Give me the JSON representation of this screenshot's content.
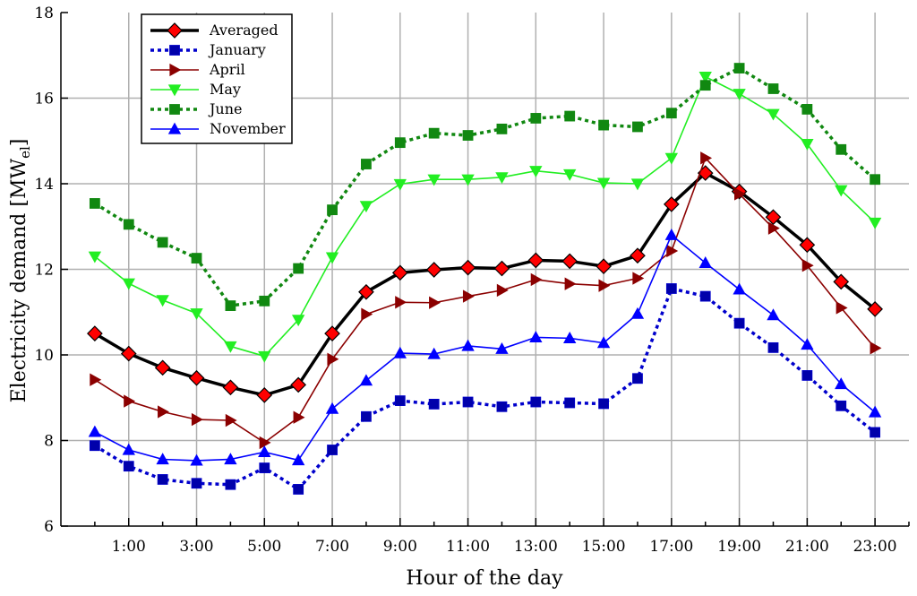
{
  "chart_data": {
    "type": "line",
    "xlabel": "Hour of the day",
    "ylabel_main": "Electricity demand [MW",
    "ylabel_sub": "el",
    "ylabel_close": "]",
    "xlim": [
      -1,
      24
    ],
    "ylim": [
      6,
      18
    ],
    "y_ticks": [
      6,
      8,
      10,
      12,
      14,
      16,
      18
    ],
    "x_ticks": [
      1,
      3,
      5,
      7,
      9,
      11,
      13,
      15,
      17,
      19,
      21,
      23
    ],
    "x_tick_labels": [
      "1:00",
      "3:00",
      "5:00",
      "7:00",
      "9:00",
      "11:00",
      "13:00",
      "15:00",
      "17:00",
      "19:00",
      "21:00",
      "23:00"
    ],
    "x_minor_ticks": [
      0,
      2,
      4,
      6,
      8,
      10,
      12,
      14,
      16,
      18,
      20,
      22,
      24
    ],
    "grid": true,
    "legend_position": "top-left",
    "x": [
      0,
      1,
      2,
      3,
      4,
      5,
      6,
      7,
      8,
      9,
      10,
      11,
      12,
      13,
      14,
      15,
      16,
      17,
      18,
      19,
      20,
      21,
      22,
      23
    ],
    "series": [
      {
        "name": "Averaged",
        "color": "#000000",
        "marker": "diamond",
        "marker_fill": "#ff0000",
        "dash": "solid",
        "width": 3.5,
        "values": [
          10.5,
          10.03,
          9.7,
          9.46,
          9.24,
          9.06,
          9.3,
          10.5,
          11.47,
          11.92,
          11.99,
          12.04,
          12.02,
          12.21,
          12.19,
          12.07,
          12.32,
          13.52,
          14.25,
          13.82,
          13.22,
          12.57,
          11.71,
          11.07
        ]
      },
      {
        "name": "January",
        "color": "#0000cc",
        "marker": "square",
        "marker_fill": "#0000aa",
        "dash": "dotted",
        "width": 3.5,
        "values": [
          7.88,
          7.4,
          7.09,
          7.0,
          6.97,
          7.36,
          6.86,
          7.78,
          8.56,
          8.93,
          8.85,
          8.9,
          8.79,
          8.9,
          8.88,
          8.86,
          9.45,
          11.55,
          11.37,
          10.74,
          10.17,
          9.52,
          8.81,
          8.19
        ]
      },
      {
        "name": "April",
        "color": "#8b0000",
        "marker": "triangle-right",
        "marker_fill": "#8b0000",
        "dash": "solid",
        "width": 1.6,
        "values": [
          9.42,
          8.92,
          8.67,
          8.49,
          8.47,
          7.95,
          8.54,
          9.9,
          10.95,
          11.23,
          11.22,
          11.37,
          11.51,
          11.76,
          11.66,
          11.62,
          11.79,
          12.43,
          14.6,
          13.76,
          12.96,
          12.09,
          11.1,
          10.16
        ]
      },
      {
        "name": "May",
        "color": "#22ee22",
        "marker": "triangle-down",
        "marker_fill": "#22ee22",
        "dash": "solid",
        "width": 1.6,
        "values": [
          12.3,
          11.67,
          11.28,
          10.97,
          10.2,
          9.97,
          10.82,
          12.28,
          13.48,
          13.99,
          14.1,
          14.1,
          14.15,
          14.3,
          14.22,
          14.02,
          14.0,
          14.6,
          16.5,
          16.1,
          15.63,
          14.93,
          13.85,
          13.09
        ]
      },
      {
        "name": "June",
        "color": "#118811",
        "marker": "square",
        "marker_fill": "#118811",
        "dash": "dotted",
        "width": 3.5,
        "values": [
          13.54,
          13.05,
          12.63,
          12.26,
          11.15,
          11.26,
          12.02,
          13.39,
          14.46,
          14.96,
          15.18,
          15.13,
          15.28,
          15.53,
          15.58,
          15.37,
          15.33,
          15.65,
          16.3,
          16.7,
          16.22,
          15.74,
          14.8,
          14.1
        ]
      },
      {
        "name": "November",
        "color": "#0000ff",
        "marker": "triangle-up",
        "marker_fill": "#0000ff",
        "dash": "solid",
        "width": 1.6,
        "values": [
          8.2,
          7.78,
          7.56,
          7.53,
          7.56,
          7.73,
          7.54,
          8.74,
          9.4,
          10.04,
          10.02,
          10.21,
          10.14,
          10.41,
          10.39,
          10.28,
          10.96,
          12.8,
          12.15,
          11.53,
          10.93,
          10.24,
          9.32,
          8.66
        ]
      }
    ]
  }
}
